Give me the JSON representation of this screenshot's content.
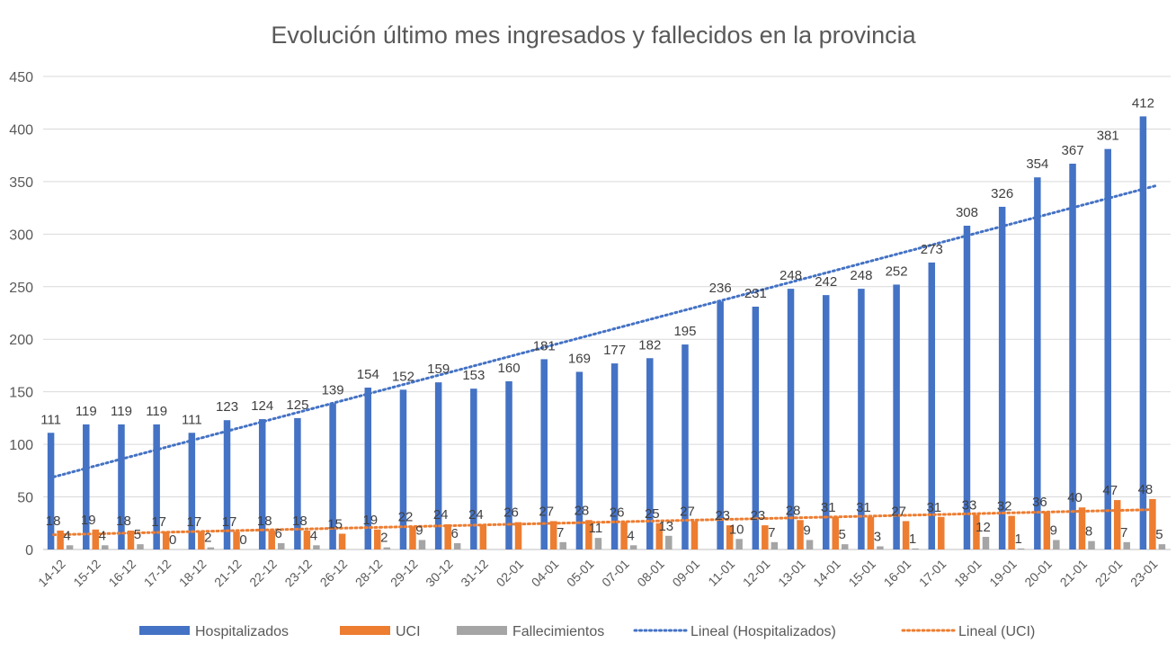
{
  "chart_data": {
    "type": "bar",
    "title": "Evolución último mes ingresados y fallecidos en la provincia",
    "xlabel": "",
    "ylabel": "",
    "ylim": [
      0,
      450
    ],
    "yticks": [
      0,
      50,
      100,
      150,
      200,
      250,
      300,
      350,
      400,
      450
    ],
    "grid": true,
    "legend_position": "bottom",
    "categories": [
      "14-12",
      "15-12",
      "16-12",
      "17-12",
      "18-12",
      "21-12",
      "22-12",
      "23-12",
      "26-12",
      "28-12",
      "29-12",
      "30-12",
      "31-12",
      "02-01",
      "04-01",
      "05-01",
      "07-01",
      "08-01",
      "09-01",
      "11-01",
      "12-01",
      "13-01",
      "14-01",
      "15-01",
      "16-01",
      "17-01",
      "18-01",
      "19-01",
      "20-01",
      "21-01",
      "22-01",
      "23-01"
    ],
    "series": [
      {
        "name": "Hospitalizados",
        "color": "#4472C4",
        "labels": true,
        "values": [
          111,
          119,
          119,
          119,
          111,
          123,
          124,
          125,
          139,
          154,
          152,
          159,
          153,
          160,
          181,
          169,
          177,
          182,
          195,
          236,
          231,
          248,
          242,
          248,
          252,
          273,
          308,
          326,
          354,
          367,
          381,
          412
        ]
      },
      {
        "name": "UCI",
        "color": "#ED7D31",
        "labels": true,
        "values": [
          18,
          19,
          18,
          17,
          17,
          17,
          18,
          18,
          15,
          19,
          22,
          24,
          24,
          26,
          27,
          28,
          26,
          25,
          27,
          23,
          23,
          28,
          31,
          31,
          27,
          31,
          33,
          32,
          36,
          40,
          47,
          48
        ]
      },
      {
        "name": "Fallecimientos",
        "color": "#A5A5A5",
        "labels": true,
        "values": [
          4,
          4,
          5,
          0,
          2,
          0,
          6,
          4,
          null,
          2,
          9,
          6,
          null,
          null,
          7,
          11,
          4,
          13,
          null,
          10,
          7,
          9,
          5,
          3,
          1,
          null,
          12,
          1,
          9,
          8,
          7,
          5
        ]
      }
    ],
    "trendlines": [
      {
        "name": "Lineal (Hospitalizados)",
        "color": "#4472C4",
        "style": "dotted",
        "start": 69,
        "end": 346
      },
      {
        "name": "Lineal (UCI)",
        "color": "#ED7D31",
        "style": "dotted",
        "start": 14,
        "end": 38
      }
    ]
  }
}
